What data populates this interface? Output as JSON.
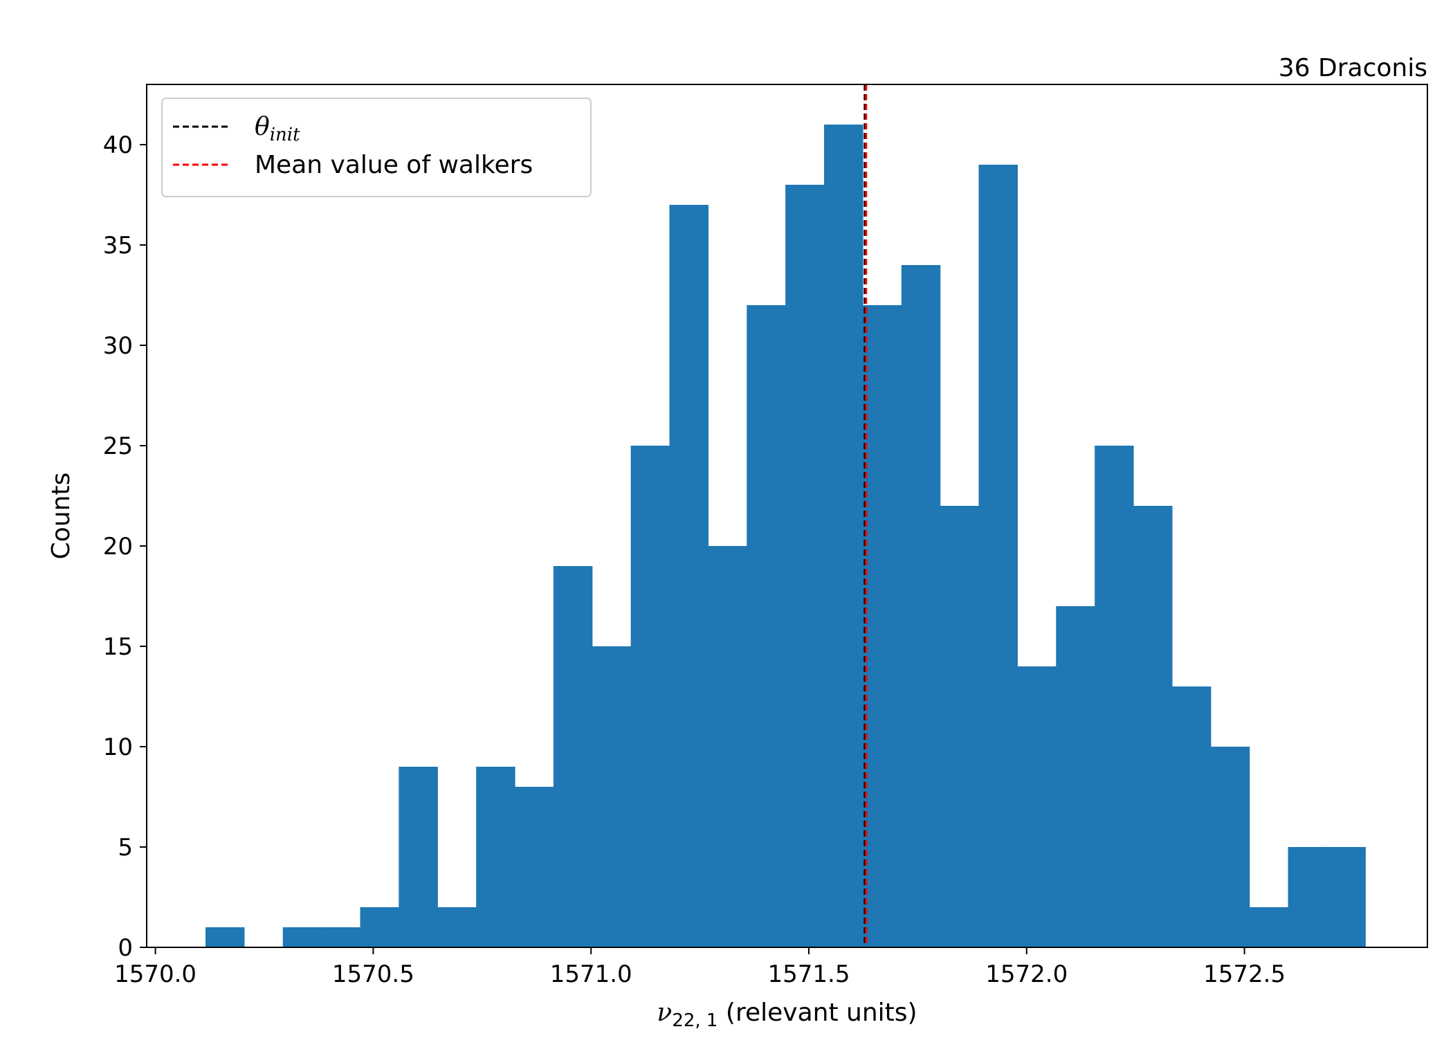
{
  "chart_data": {
    "type": "bar",
    "subtype": "histogram",
    "title": "36 Draconis",
    "title_position": "top-right",
    "xlabel": {
      "symbol": "ν",
      "subscript": "22, 1",
      "suffix": " (relevant units)"
    },
    "ylabel": "Counts",
    "xlim": [
      1569.98,
      1572.92
    ],
    "ylim": [
      0,
      43
    ],
    "xticks": [
      1570.0,
      1570.5,
      1571.0,
      1571.5,
      1572.0,
      1572.5
    ],
    "xtick_labels": [
      "1570.0",
      "1570.5",
      "1571.0",
      "1571.5",
      "1572.0",
      "1572.5"
    ],
    "yticks": [
      0,
      5,
      10,
      15,
      20,
      25,
      30,
      35,
      40
    ],
    "ytick_labels": [
      "0",
      "5",
      "10",
      "15",
      "20",
      "25",
      "30",
      "35",
      "40"
    ],
    "bin_start": 1570.115,
    "bin_width": 0.08875,
    "counts": [
      1,
      0,
      1,
      1,
      2,
      9,
      2,
      9,
      8,
      19,
      15,
      25,
      37,
      20,
      32,
      38,
      41,
      32,
      34,
      22,
      39,
      14,
      17,
      25,
      22,
      13,
      10,
      2,
      5,
      5
    ],
    "bar_color": "#1f77b4",
    "vlines": [
      {
        "name": "θ",
        "subscript": "init",
        "x": 1571.63,
        "color": "#000000"
      },
      {
        "name": "Mean value of walkers",
        "x": 1571.63,
        "color": "#ff0000"
      }
    ],
    "legend_position": "top-left",
    "grid": false
  }
}
